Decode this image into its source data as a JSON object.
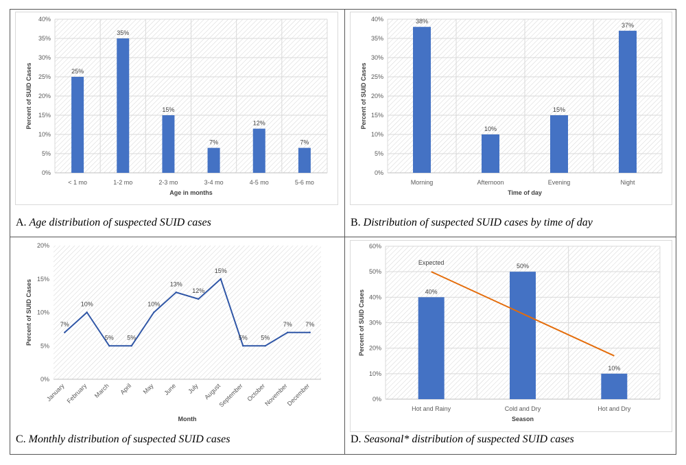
{
  "figure": {
    "panels": [
      {
        "id": "A",
        "caption_letter": "A.",
        "caption_text": "Age distribution of suspected SUID cases",
        "chart_data": {
          "type": "bar",
          "categories": [
            "< 1 mo",
            "1-2 mo",
            "2-3 mo",
            "3-4 mo",
            "4-5 mo",
            "5-6 mo"
          ],
          "values": [
            25,
            35,
            15,
            6.5,
            11.5,
            6.5
          ],
          "data_labels": [
            "25%",
            "35%",
            "15%",
            "7%",
            "12%",
            "7%"
          ],
          "xlabel": "Age in months",
          "ylabel": "Percent of SUID Cases",
          "ylim": [
            0,
            40
          ],
          "yticks": [
            0,
            5,
            10,
            15,
            20,
            25,
            30,
            35,
            40
          ],
          "ytick_labels": [
            "0%",
            "5%",
            "10%",
            "15%",
            "20%",
            "25%",
            "30%",
            "35%",
            "40%"
          ],
          "grid": true,
          "bar_color": "#4472C4"
        }
      },
      {
        "id": "B",
        "caption_letter": "B.",
        "caption_text": "Distribution of suspected SUID cases by time of day",
        "chart_data": {
          "type": "bar",
          "categories": [
            "Morning",
            "Afternoon",
            "Evening",
            "Night"
          ],
          "values": [
            38,
            10,
            15,
            37
          ],
          "data_labels": [
            "38%",
            "10%",
            "15%",
            "37%"
          ],
          "xlabel": "Time of day",
          "ylabel": "Percent of SUID Cases",
          "ylim": [
            0,
            40
          ],
          "yticks": [
            0,
            5,
            10,
            15,
            20,
            25,
            30,
            35,
            40
          ],
          "ytick_labels": [
            "0%",
            "5%",
            "10%",
            "15%",
            "20%",
            "25%",
            "30%",
            "35%",
            "40%"
          ],
          "grid": true,
          "bar_color": "#4472C4"
        }
      },
      {
        "id": "C",
        "caption_letter": "C.",
        "caption_text": "Monthly distribution of suspected SUID cases",
        "chart_data": {
          "type": "line",
          "categories": [
            "January",
            "February",
            "March",
            "April",
            "May",
            "June",
            "July",
            "August",
            "September",
            "October",
            "November",
            "December"
          ],
          "values": [
            7,
            10,
            5,
            5,
            10,
            13,
            12,
            15,
            5,
            5,
            7,
            7
          ],
          "data_labels": [
            "7%",
            "10%",
            "5%",
            "5%",
            "10%",
            "13%",
            "12%",
            "15%",
            "5%",
            "5%",
            "7%",
            "7%"
          ],
          "xlabel": "Month",
          "ylabel": "Percent of SUID Cases",
          "ylim": [
            0,
            20
          ],
          "yticks": [
            0,
            5,
            10,
            15,
            20
          ],
          "ytick_labels": [
            "0%",
            "5%",
            "10%",
            "15%",
            "20%"
          ],
          "grid": false,
          "line_color": "#2F56A6"
        }
      },
      {
        "id": "D",
        "caption_letter": "D.",
        "caption_text": "Seasonal* distribution of suspected SUID cases",
        "chart_data": {
          "type": "bar",
          "categories": [
            "Hot and Rainy",
            "Cold and Dry",
            "Hot and Dry"
          ],
          "values": [
            40,
            50,
            10
          ],
          "data_labels": [
            "40%",
            "50%",
            "10%"
          ],
          "expected_line": {
            "name": "Expected",
            "start": 50,
            "end": 17,
            "color": "#E46C0A"
          },
          "xlabel": "Season",
          "ylabel": "Percent of SUID Cases",
          "ylim": [
            0,
            60
          ],
          "yticks": [
            0,
            10,
            20,
            30,
            40,
            50,
            60
          ],
          "ytick_labels": [
            "0%",
            "10%",
            "20%",
            "30%",
            "40%",
            "50%",
            "60%"
          ],
          "grid": true,
          "bar_color": "#4472C4"
        }
      }
    ]
  }
}
